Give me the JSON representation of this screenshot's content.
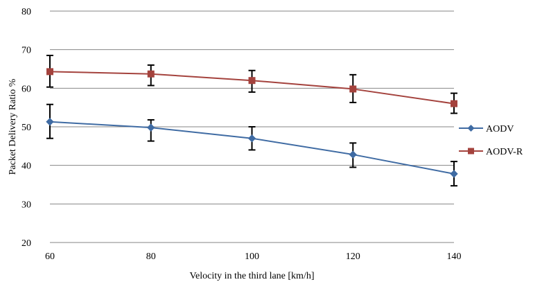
{
  "chart_data": {
    "type": "line",
    "xlabel": "Velocity in the third lane [km/h]",
    "ylabel": "Packet Delivery Ratio %",
    "x": [
      60,
      80,
      100,
      120,
      140
    ],
    "ylim": [
      20,
      80
    ],
    "yticks": [
      20,
      30,
      40,
      50,
      60,
      70,
      80
    ],
    "grid": "horizontal",
    "legend_position": "right",
    "series": [
      {
        "name": "AODV",
        "color": "#3f6ba3",
        "marker": "diamond",
        "values": [
          51.3,
          49.8,
          47.0,
          42.8,
          37.8
        ],
        "error_low": [
          47.0,
          46.3,
          44.0,
          39.5,
          34.7
        ],
        "error_high": [
          55.8,
          51.8,
          50.0,
          45.8,
          41.0
        ]
      },
      {
        "name": "AODV-R",
        "color": "#a4423d",
        "marker": "square",
        "values": [
          64.3,
          63.7,
          62.0,
          59.8,
          56.0
        ],
        "error_low": [
          60.3,
          60.7,
          59.0,
          56.3,
          53.5
        ],
        "error_high": [
          68.5,
          66.0,
          64.6,
          63.5,
          58.7
        ]
      }
    ]
  }
}
